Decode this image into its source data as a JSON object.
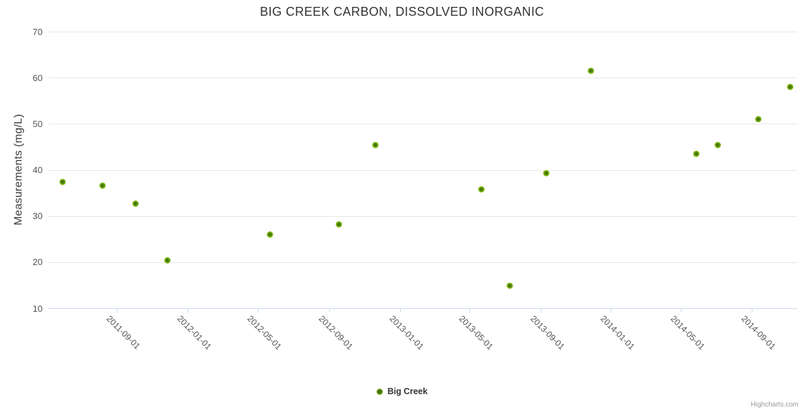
{
  "title": "BIG CREEK CARBON, DISSOLVED INORGANIC",
  "legend": {
    "label": "Big Creek"
  },
  "credits": "Highcharts.com",
  "colors": {
    "marker_outer": "#79b702",
    "marker_inner": "#44700a",
    "grid_line": "#e6e6e6",
    "axis_line": "#ccd6eb",
    "title_text": "#333333",
    "axis_label_text": "#545454",
    "credits_text": "#999999"
  },
  "chart_data": {
    "type": "scatter",
    "title": "BIG CREEK CARBON, DISSOLVED INORGANIC",
    "xlabel": "",
    "ylabel": "Measurements (mg/L)",
    "ylim": [
      10,
      70
    ],
    "y_ticks": [
      10,
      20,
      30,
      40,
      50,
      60,
      70
    ],
    "x_ticks": [
      "2011-09-01",
      "2012-01-01",
      "2012-05-01",
      "2012-09-01",
      "2013-01-01",
      "2013-05-01",
      "2013-09-01",
      "2014-01-01",
      "2014-05-01",
      "2014-09-01"
    ],
    "x_range": [
      "2011-05-05",
      "2014-11-18"
    ],
    "grid": true,
    "legend_position": "bottom-center",
    "series": [
      {
        "name": "Big Creek",
        "color": "#79b702",
        "points": [
          {
            "date": "2011-05-30",
            "value": 37.4
          },
          {
            "date": "2011-08-07",
            "value": 36.6
          },
          {
            "date": "2011-10-03",
            "value": 32.7
          },
          {
            "date": "2011-11-27",
            "value": 20.4
          },
          {
            "date": "2012-05-22",
            "value": 26.0
          },
          {
            "date": "2012-09-18",
            "value": 28.2
          },
          {
            "date": "2012-11-20",
            "value": 45.4
          },
          {
            "date": "2013-05-22",
            "value": 35.8
          },
          {
            "date": "2013-07-10",
            "value": 14.9
          },
          {
            "date": "2013-09-11",
            "value": 39.3
          },
          {
            "date": "2013-11-27",
            "value": 61.5
          },
          {
            "date": "2014-05-28",
            "value": 43.5
          },
          {
            "date": "2014-07-04",
            "value": 45.4
          },
          {
            "date": "2014-09-12",
            "value": 51.0
          },
          {
            "date": "2014-11-06",
            "value": 58.0
          }
        ]
      }
    ]
  }
}
